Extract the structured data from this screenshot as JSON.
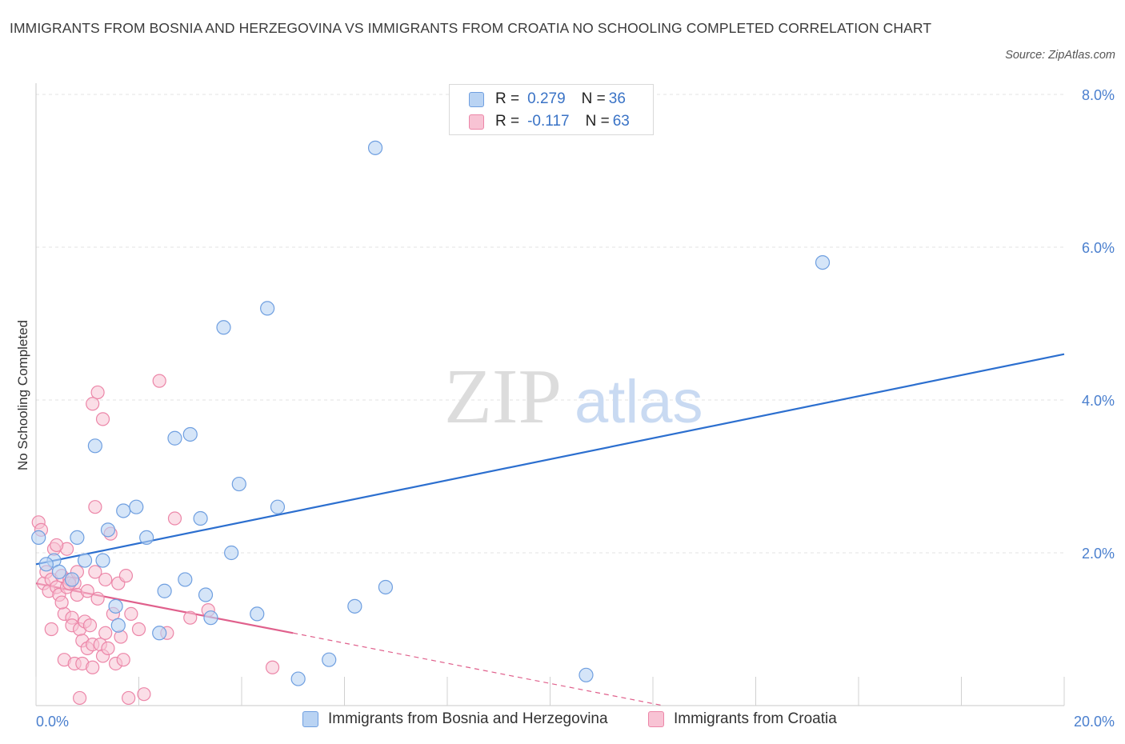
{
  "title": "IMMIGRANTS FROM BOSNIA AND HERZEGOVINA VS IMMIGRANTS FROM CROATIA NO SCHOOLING COMPLETED CORRELATION CHART",
  "source": "Source: ZipAtlas.com",
  "watermark": {
    "zip": "ZIP",
    "atlas": "atlas"
  },
  "legend": {
    "rows": [
      {
        "r_label": "R = ",
        "r_value": "0.279",
        "n_label": "N = ",
        "n_value": "36"
      },
      {
        "r_label": "R = ",
        "r_value": "-0.117",
        "n_label": "N = ",
        "n_value": "63"
      }
    ]
  },
  "colors": {
    "bosnia_fill": "#b9d3f3",
    "bosnia_stroke": "#6f9fe0",
    "bosnia_line": "#2c6fcf",
    "croatia_fill": "#f8c3d4",
    "croatia_stroke": "#ec86a8",
    "croatia_line": "#e0608c",
    "grid": "#e3e3e3",
    "tick_text": "#4a7fce"
  },
  "chart_data": {
    "type": "scatter",
    "title": "IMMIGRANTS FROM BOSNIA AND HERZEGOVINA VS IMMIGRANTS FROM CROATIA NO SCHOOLING COMPLETED CORRELATION CHART",
    "xlabel": "",
    "ylabel": "No Schooling Completed",
    "xlim": [
      0,
      20
    ],
    "ylim": [
      0,
      8
    ],
    "x_tick_labels": [
      "0.0%",
      "20.0%"
    ],
    "y_ticks": [
      2,
      4,
      6,
      8
    ],
    "y_tick_labels": [
      "2.0%",
      "4.0%",
      "6.0%",
      "8.0%"
    ],
    "grid": true,
    "legend_position": "top-center",
    "series": [
      {
        "name": "Immigrants from Bosnia and Herzegovina",
        "points": [
          [
            0.05,
            2.2
          ],
          [
            0.35,
            1.9
          ],
          [
            0.45,
            1.75
          ],
          [
            0.7,
            1.65
          ],
          [
            0.8,
            2.2
          ],
          [
            0.95,
            1.9
          ],
          [
            1.15,
            3.4
          ],
          [
            1.3,
            1.9
          ],
          [
            1.4,
            2.3
          ],
          [
            1.55,
            1.3
          ],
          [
            1.6,
            1.05
          ],
          [
            1.7,
            2.55
          ],
          [
            1.95,
            2.6
          ],
          [
            2.15,
            2.2
          ],
          [
            2.4,
            0.95
          ],
          [
            2.5,
            1.5
          ],
          [
            2.7,
            3.5
          ],
          [
            2.9,
            1.65
          ],
          [
            3.0,
            3.55
          ],
          [
            3.2,
            2.45
          ],
          [
            3.3,
            1.45
          ],
          [
            3.4,
            1.15
          ],
          [
            3.65,
            4.95
          ],
          [
            3.8,
            2.0
          ],
          [
            3.95,
            2.9
          ],
          [
            4.3,
            1.2
          ],
          [
            4.5,
            5.2
          ],
          [
            4.7,
            2.6
          ],
          [
            5.1,
            0.35
          ],
          [
            5.7,
            0.6
          ],
          [
            6.2,
            1.3
          ],
          [
            6.6,
            7.3
          ],
          [
            6.8,
            1.55
          ],
          [
            10.7,
            0.4
          ],
          [
            15.3,
            5.8
          ],
          [
            0.2,
            1.85
          ]
        ],
        "trend": {
          "x": [
            0,
            20
          ],
          "y": [
            1.85,
            4.6
          ]
        }
      },
      {
        "name": "Immigrants from Croatia",
        "points": [
          [
            0.05,
            2.4
          ],
          [
            0.1,
            2.3
          ],
          [
            0.15,
            1.6
          ],
          [
            0.2,
            1.75
          ],
          [
            0.25,
            1.5
          ],
          [
            0.3,
            1.65
          ],
          [
            0.3,
            1.0
          ],
          [
            0.35,
            2.05
          ],
          [
            0.4,
            1.55
          ],
          [
            0.45,
            1.45
          ],
          [
            0.5,
            1.7
          ],
          [
            0.55,
            1.2
          ],
          [
            0.55,
            0.6
          ],
          [
            0.6,
            2.05
          ],
          [
            0.6,
            1.55
          ],
          [
            0.65,
            1.65
          ],
          [
            0.7,
            1.15
          ],
          [
            0.7,
            1.05
          ],
          [
            0.75,
            0.55
          ],
          [
            0.75,
            1.6
          ],
          [
            0.8,
            1.75
          ],
          [
            0.8,
            1.45
          ],
          [
            0.85,
            1.0
          ],
          [
            0.9,
            0.85
          ],
          [
            0.9,
            0.55
          ],
          [
            0.95,
            1.1
          ],
          [
            1.0,
            0.75
          ],
          [
            1.0,
            1.5
          ],
          [
            1.05,
            1.05
          ],
          [
            1.1,
            0.5
          ],
          [
            1.1,
            0.8
          ],
          [
            1.15,
            1.75
          ],
          [
            1.2,
            1.4
          ],
          [
            1.25,
            0.8
          ],
          [
            1.3,
            0.65
          ],
          [
            1.35,
            0.95
          ],
          [
            1.4,
            0.75
          ],
          [
            1.45,
            2.25
          ],
          [
            1.5,
            1.2
          ],
          [
            1.55,
            0.55
          ],
          [
            1.6,
            1.6
          ],
          [
            1.65,
            0.9
          ],
          [
            1.7,
            0.6
          ],
          [
            1.75,
            1.7
          ],
          [
            1.8,
            0.1
          ],
          [
            1.85,
            1.2
          ],
          [
            2.0,
            1.0
          ],
          [
            2.1,
            0.15
          ],
          [
            2.4,
            4.25
          ],
          [
            2.55,
            0.95
          ],
          [
            2.7,
            2.45
          ],
          [
            3.0,
            1.15
          ],
          [
            3.35,
            1.25
          ],
          [
            4.6,
            0.5
          ],
          [
            1.1,
            3.95
          ],
          [
            1.2,
            4.1
          ],
          [
            1.3,
            3.75
          ],
          [
            1.15,
            2.6
          ],
          [
            0.4,
            2.1
          ],
          [
            0.5,
            1.35
          ],
          [
            1.35,
            1.65
          ],
          [
            0.65,
            1.6
          ],
          [
            0.85,
            0.1
          ]
        ],
        "trend": {
          "x": [
            0,
            5.0
          ],
          "y": [
            1.6,
            0.95
          ]
        },
        "trend_extension": {
          "x": [
            5.0,
            12.2
          ],
          "y": [
            0.95,
            0.0
          ]
        }
      }
    ]
  }
}
